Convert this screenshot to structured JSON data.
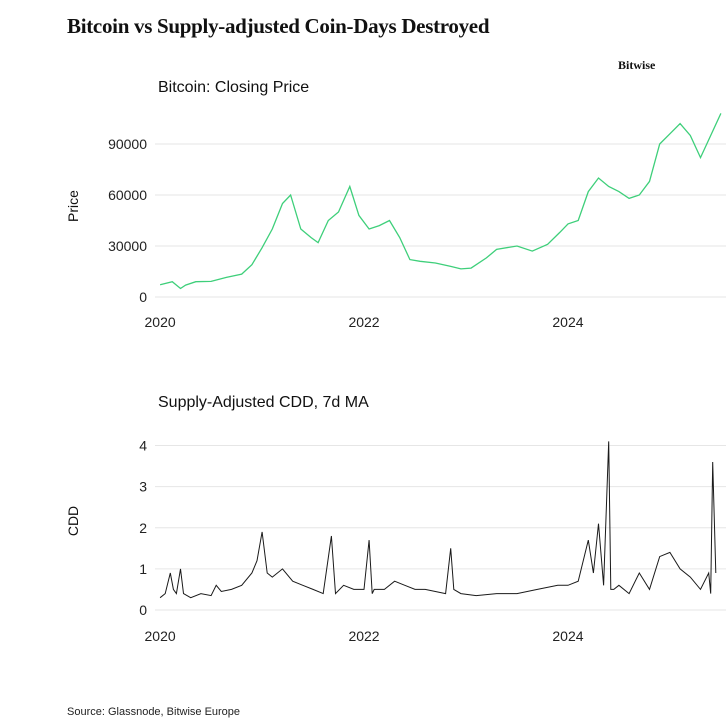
{
  "header": {
    "title": "Bitcoin vs Supply-adjusted Coin-Days Destroyed",
    "brand": "Bitwise"
  },
  "footer": {
    "source": "Source: Glassnode, Bitwise Europe"
  },
  "colors": {
    "price_line": "#3ecf7a",
    "cdd_line": "#1a1a1a",
    "grid": "#e6e6e6"
  },
  "chart_data": [
    {
      "type": "line",
      "title": "Bitcoin: Closing Price",
      "xlabel": "",
      "ylabel": "Price",
      "xlim": [
        2019.95,
        2025.55
      ],
      "ylim": [
        0,
        110000
      ],
      "yticks": [
        0,
        30000,
        60000,
        90000
      ],
      "xticks": [
        2020,
        2022,
        2024
      ],
      "grid": true,
      "series": [
        {
          "name": "Closing Price",
          "x": [
            2020.0,
            2020.12,
            2020.2,
            2020.25,
            2020.35,
            2020.5,
            2020.65,
            2020.8,
            2020.9,
            2021.0,
            2021.1,
            2021.2,
            2021.28,
            2021.38,
            2021.48,
            2021.55,
            2021.65,
            2021.75,
            2021.86,
            2021.95,
            2022.05,
            2022.15,
            2022.25,
            2022.35,
            2022.45,
            2022.55,
            2022.7,
            2022.85,
            2022.95,
            2023.05,
            2023.2,
            2023.3,
            2023.5,
            2023.65,
            2023.8,
            2023.92,
            2024.0,
            2024.1,
            2024.2,
            2024.3,
            2024.4,
            2024.5,
            2024.6,
            2024.7,
            2024.8,
            2024.9,
            2025.0,
            2025.1,
            2025.2,
            2025.3,
            2025.4,
            2025.5
          ],
          "values": [
            7200,
            9000,
            5000,
            7000,
            9000,
            9200,
            11500,
            13500,
            19000,
            29000,
            40000,
            55000,
            60000,
            40000,
            35000,
            32000,
            45000,
            50000,
            65000,
            48000,
            40000,
            42000,
            45000,
            35000,
            22000,
            21000,
            20000,
            18000,
            16500,
            17000,
            23000,
            28000,
            30000,
            27000,
            31000,
            38000,
            43000,
            45000,
            62000,
            70000,
            65000,
            62000,
            58000,
            60000,
            68000,
            90000,
            96000,
            102000,
            95000,
            82000,
            95000,
            108000
          ]
        }
      ]
    },
    {
      "type": "line",
      "title": "Supply-Adjusted CDD, 7d MA",
      "xlabel": "",
      "ylabel": "CDD",
      "xlim": [
        2019.95,
        2025.55
      ],
      "ylim": [
        0,
        4.5
      ],
      "yticks": [
        0,
        1,
        2,
        3,
        4
      ],
      "xticks": [
        2020,
        2022,
        2024
      ],
      "grid": true,
      "series": [
        {
          "name": "Supply-Adjusted CDD (7d MA)",
          "x": [
            2020.0,
            2020.05,
            2020.1,
            2020.13,
            2020.16,
            2020.2,
            2020.23,
            2020.3,
            2020.4,
            2020.5,
            2020.55,
            2020.6,
            2020.7,
            2020.8,
            2020.9,
            2020.95,
            2021.0,
            2021.05,
            2021.1,
            2021.2,
            2021.3,
            2021.4,
            2021.5,
            2021.6,
            2021.68,
            2021.72,
            2021.8,
            2021.9,
            2022.0,
            2022.05,
            2022.08,
            2022.1,
            2022.2,
            2022.3,
            2022.4,
            2022.5,
            2022.6,
            2022.8,
            2022.85,
            2022.88,
            2022.95,
            2023.1,
            2023.3,
            2023.5,
            2023.7,
            2023.9,
            2024.0,
            2024.1,
            2024.2,
            2024.25,
            2024.3,
            2024.35,
            2024.4,
            2024.42,
            2024.45,
            2024.5,
            2024.6,
            2024.7,
            2024.8,
            2024.9,
            2025.0,
            2025.1,
            2025.2,
            2025.3,
            2025.38,
            2025.4,
            2025.42,
            2025.45
          ],
          "values": [
            0.3,
            0.4,
            0.9,
            0.5,
            0.4,
            1.0,
            0.4,
            0.3,
            0.4,
            0.35,
            0.6,
            0.45,
            0.5,
            0.6,
            0.9,
            1.2,
            1.9,
            0.9,
            0.8,
            1.0,
            0.7,
            0.6,
            0.5,
            0.4,
            1.8,
            0.4,
            0.6,
            0.5,
            0.5,
            1.7,
            0.4,
            0.5,
            0.5,
            0.7,
            0.6,
            0.5,
            0.5,
            0.4,
            1.5,
            0.5,
            0.4,
            0.35,
            0.4,
            0.4,
            0.5,
            0.6,
            0.6,
            0.7,
            1.7,
            0.9,
            2.1,
            0.6,
            4.1,
            0.5,
            0.5,
            0.6,
            0.4,
            0.9,
            0.5,
            1.3,
            1.4,
            1.0,
            0.8,
            0.5,
            0.9,
            0.4,
            3.6,
            0.9
          ]
        }
      ]
    }
  ]
}
